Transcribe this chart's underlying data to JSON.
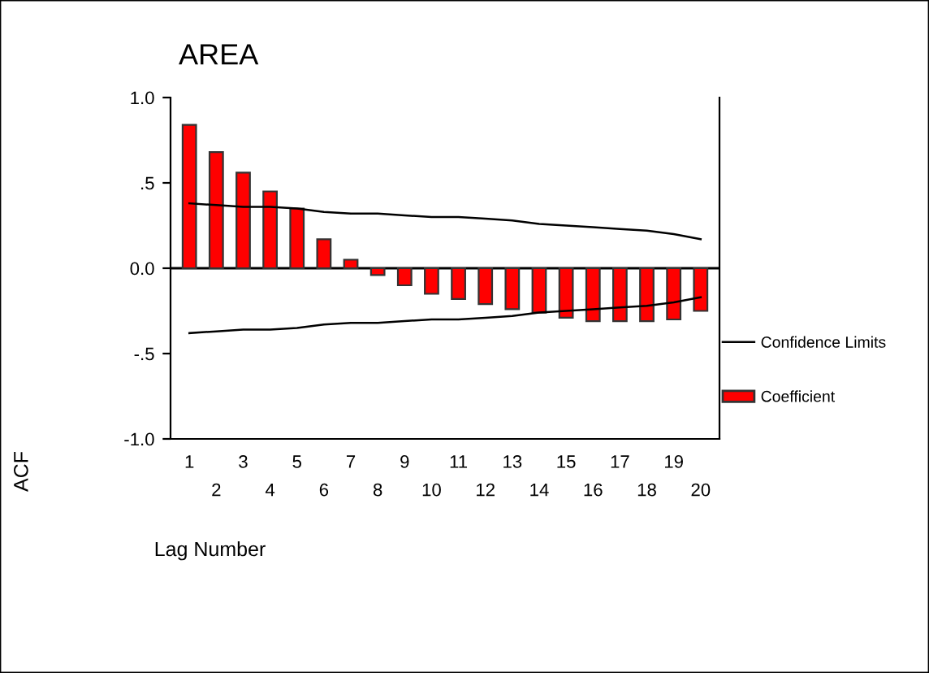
{
  "chart_data": {
    "type": "bar",
    "title": "AREA",
    "xlabel": "Lag Number",
    "ylabel": "ACF",
    "categories": [
      "1",
      "2",
      "3",
      "4",
      "5",
      "6",
      "7",
      "8",
      "9",
      "10",
      "11",
      "12",
      "13",
      "14",
      "15",
      "16",
      "17",
      "18",
      "19",
      "20"
    ],
    "series": [
      {
        "name": "Coefficient",
        "type": "bar",
        "color": "#ff0000",
        "values": [
          0.84,
          0.68,
          0.56,
          0.45,
          0.35,
          0.17,
          0.05,
          -0.04,
          -0.1,
          -0.15,
          -0.18,
          -0.21,
          -0.24,
          -0.26,
          -0.29,
          -0.31,
          -0.31,
          -0.31,
          -0.3,
          -0.25
        ]
      },
      {
        "name": "Confidence Limits",
        "type": "line",
        "color": "#000000",
        "values": [
          0.38,
          0.37,
          0.36,
          0.36,
          0.35,
          0.33,
          0.32,
          0.32,
          0.31,
          0.3,
          0.3,
          0.29,
          0.28,
          0.26,
          0.25,
          0.24,
          0.23,
          0.22,
          0.2,
          0.17
        ]
      },
      {
        "type": "line",
        "color": "#000000",
        "values": [
          -0.38,
          -0.37,
          -0.36,
          -0.36,
          -0.35,
          -0.33,
          -0.32,
          -0.32,
          -0.31,
          -0.3,
          -0.3,
          -0.29,
          -0.28,
          -0.26,
          -0.25,
          -0.24,
          -0.23,
          -0.22,
          -0.2,
          -0.17
        ]
      }
    ],
    "ylim": [
      -1.0,
      1.0
    ],
    "yticks": [
      {
        "value": 1.0,
        "label": "1.0"
      },
      {
        "value": 0.5,
        "label": ".5"
      },
      {
        "value": 0.0,
        "label": "0.0"
      },
      {
        "value": -0.5,
        "label": "-.5"
      },
      {
        "value": -1.0,
        "label": "-1.0"
      }
    ],
    "ref_lines": [
      {
        "axis": "y",
        "value": 0,
        "color": "#000000"
      }
    ],
    "grid": false,
    "legend": "right"
  }
}
